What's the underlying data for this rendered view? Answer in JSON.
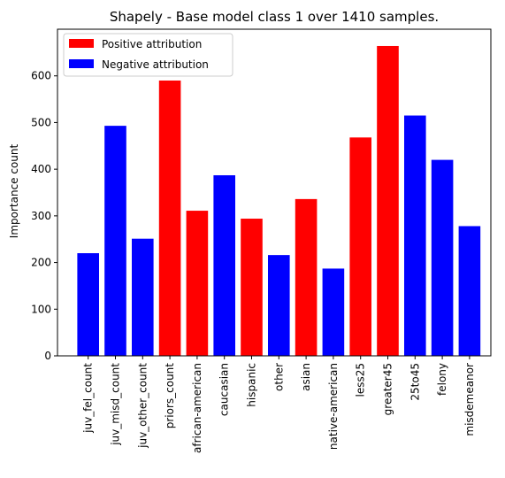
{
  "chart_data": {
    "type": "bar",
    "title": "Shapely - Base model class 1 over 1410 samples.",
    "xlabel": "",
    "ylabel": "Importance count",
    "ylim": [
      0,
      700
    ],
    "yticks": [
      0,
      100,
      200,
      300,
      400,
      500,
      600
    ],
    "grid": false,
    "legend_position": "top-left",
    "legend": [
      {
        "label": "Positive attribution",
        "color": "#ff0000"
      },
      {
        "label": "Negative attribution",
        "color": "#0000ff"
      }
    ],
    "categories": [
      "juv_fel_count",
      "juv_misd_count",
      "juv_other_count",
      "priors_count",
      "african-american",
      "caucasian",
      "hispanic",
      "other",
      "asian",
      "native-american",
      "less25",
      "greater45",
      "25to45",
      "felony",
      "misdemeanor"
    ],
    "values": [
      220,
      493,
      251,
      590,
      311,
      387,
      294,
      216,
      336,
      187,
      468,
      664,
      515,
      420,
      278
    ],
    "attribution": [
      "negative",
      "negative",
      "negative",
      "positive",
      "positive",
      "negative",
      "positive",
      "negative",
      "positive",
      "negative",
      "positive",
      "positive",
      "negative",
      "negative",
      "negative"
    ],
    "colors": {
      "positive": "#ff0000",
      "negative": "#0000ff"
    }
  }
}
